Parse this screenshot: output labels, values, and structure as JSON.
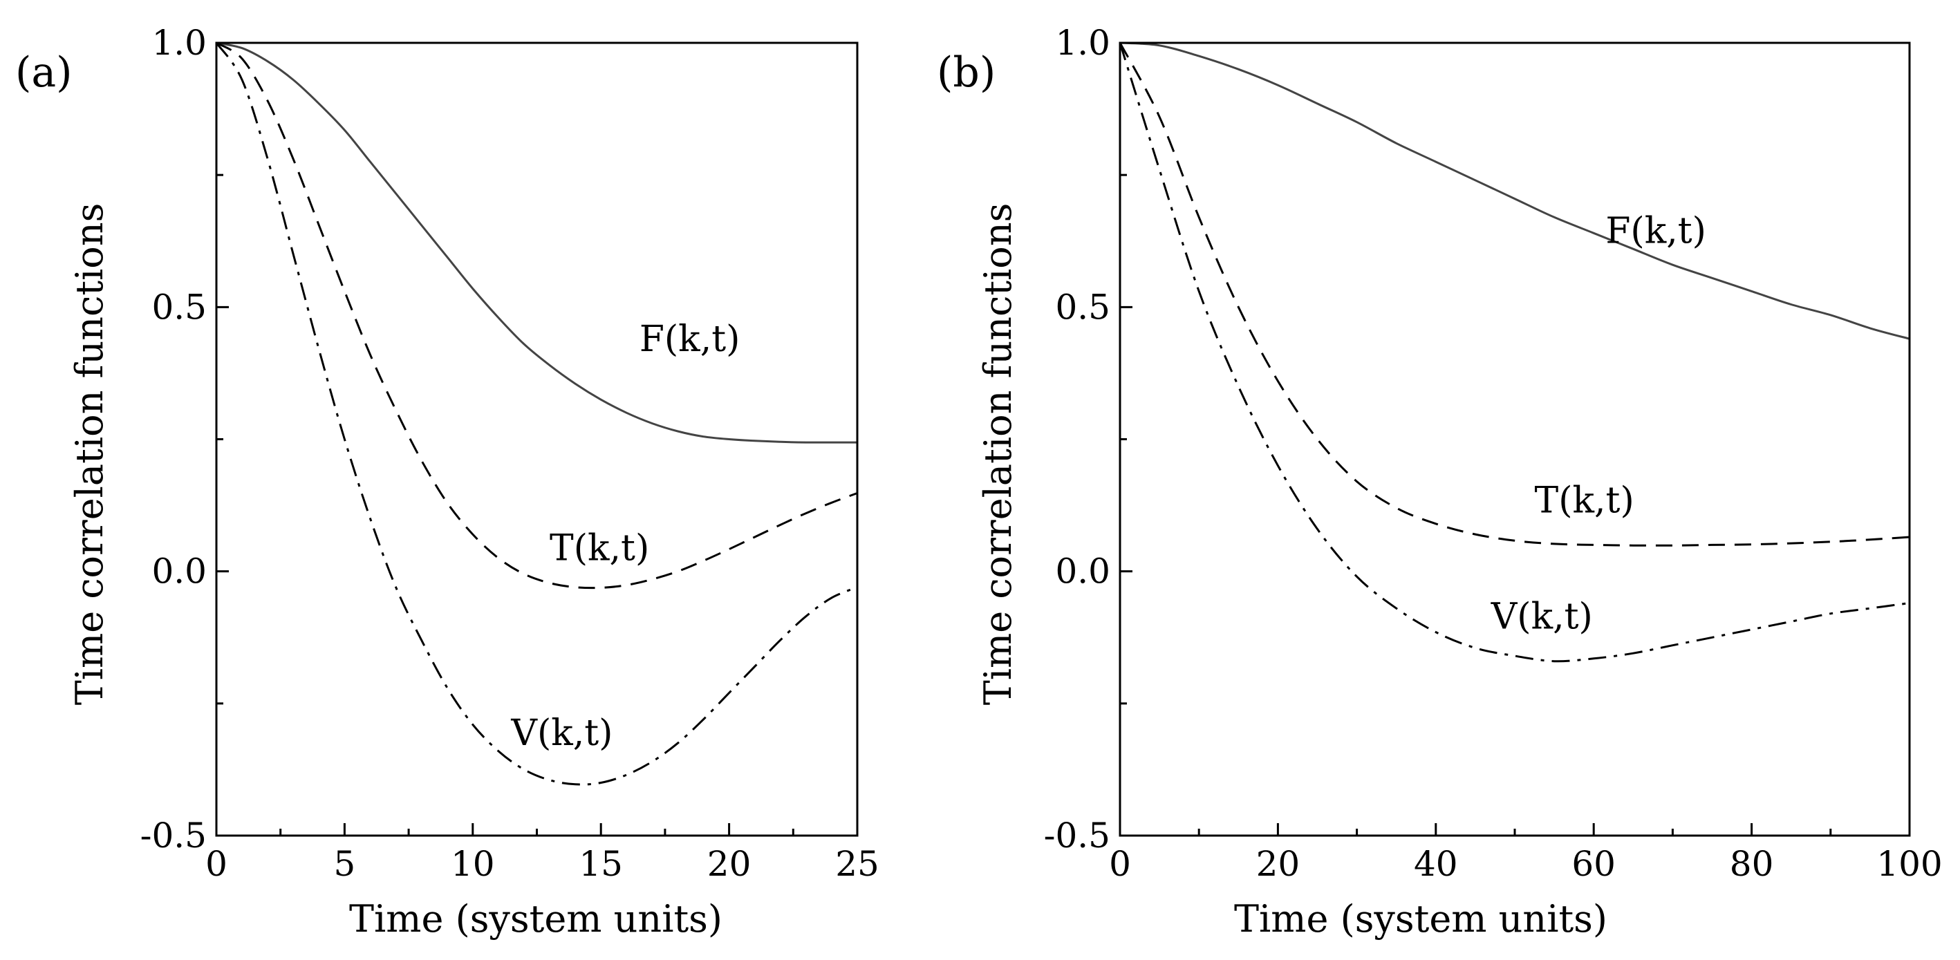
{
  "chart_data": [
    {
      "type": "line",
      "panel_label": "(a)",
      "xlabel": "Time (system units)",
      "ylabel": "Time correlation functions",
      "xlim": [
        0,
        25
      ],
      "ylim": [
        -0.5,
        1.0
      ],
      "xticks": [
        0,
        5,
        10,
        15,
        20,
        25
      ],
      "yticks": [
        -0.5,
        0.0,
        0.5,
        1.0
      ],
      "xtick_labels": [
        "0",
        "5",
        "10",
        "15",
        "20",
        "25"
      ],
      "ytick_labels": [
        "-0.5",
        "0.0",
        "0.5",
        "1.0"
      ],
      "series": [
        {
          "name": "F(k,t)",
          "style": "solid",
          "label_at": [
            16.5,
            0.44
          ],
          "x": [
            0,
            1,
            2,
            3,
            4,
            5,
            6,
            7,
            8,
            9,
            10,
            11,
            12,
            13,
            14,
            15,
            16,
            17,
            18,
            19,
            20,
            21,
            22,
            23,
            24,
            25
          ],
          "y": [
            1.0,
            0.99,
            0.965,
            0.93,
            0.885,
            0.835,
            0.775,
            0.715,
            0.655,
            0.595,
            0.535,
            0.48,
            0.43,
            0.39,
            0.355,
            0.325,
            0.3,
            0.28,
            0.265,
            0.255,
            0.25,
            0.247,
            0.245,
            0.244,
            0.244,
            0.244
          ]
        },
        {
          "name": "T(k,t)",
          "style": "dashed",
          "label_at": [
            13.0,
            0.045
          ],
          "x": [
            0,
            1,
            2,
            3,
            4,
            5,
            6,
            7,
            8,
            9,
            10,
            11,
            12,
            13,
            14,
            15,
            16,
            17,
            18,
            19,
            20,
            21,
            22,
            23,
            24,
            25
          ],
          "y": [
            1.0,
            0.97,
            0.89,
            0.78,
            0.655,
            0.53,
            0.41,
            0.305,
            0.21,
            0.13,
            0.07,
            0.025,
            -0.005,
            -0.022,
            -0.03,
            -0.031,
            -0.026,
            -0.015,
            0.0,
            0.02,
            0.042,
            0.065,
            0.088,
            0.11,
            0.13,
            0.148
          ]
        },
        {
          "name": "V(k,t)",
          "style": "dashdot",
          "label_at": [
            11.5,
            -0.305
          ],
          "x": [
            0,
            1,
            2,
            3,
            4,
            5,
            6,
            7,
            8,
            9,
            10,
            11,
            12,
            13,
            14,
            15,
            16,
            17,
            18,
            19,
            20,
            21,
            22,
            23,
            24,
            25
          ],
          "y": [
            1.0,
            0.93,
            0.78,
            0.6,
            0.42,
            0.25,
            0.1,
            -0.03,
            -0.13,
            -0.22,
            -0.29,
            -0.34,
            -0.375,
            -0.395,
            -0.403,
            -0.4,
            -0.385,
            -0.36,
            -0.325,
            -0.28,
            -0.23,
            -0.18,
            -0.13,
            -0.085,
            -0.05,
            -0.03
          ]
        }
      ]
    },
    {
      "type": "line",
      "panel_label": "(b)",
      "xlabel": "Time (system units)",
      "ylabel": "Time correlation functions",
      "xlim": [
        0,
        100
      ],
      "ylim": [
        -0.5,
        1.0
      ],
      "xticks": [
        0,
        20,
        40,
        60,
        80,
        100
      ],
      "yticks": [
        -0.5,
        0.0,
        0.5,
        1.0
      ],
      "xtick_labels": [
        "0",
        "20",
        "40",
        "60",
        "80",
        "100"
      ],
      "ytick_labels": [
        "-0.5",
        "0.0",
        "0.5",
        "1.0"
      ],
      "series": [
        {
          "name": "F(k,t)",
          "style": "solid",
          "label_at": [
            61.5,
            0.645
          ],
          "x": [
            0,
            5,
            10,
            15,
            20,
            25,
            30,
            35,
            40,
            45,
            50,
            55,
            60,
            65,
            70,
            75,
            80,
            85,
            90,
            95,
            100
          ],
          "y": [
            1.0,
            0.995,
            0.975,
            0.95,
            0.92,
            0.885,
            0.85,
            0.81,
            0.775,
            0.74,
            0.705,
            0.67,
            0.64,
            0.61,
            0.58,
            0.555,
            0.53,
            0.505,
            0.485,
            0.46,
            0.44
          ]
        },
        {
          "name": "T(k,t)",
          "style": "dashed",
          "label_at": [
            52.5,
            0.135
          ],
          "x": [
            0,
            5,
            10,
            15,
            20,
            25,
            30,
            35,
            40,
            45,
            50,
            55,
            60,
            65,
            70,
            75,
            80,
            85,
            90,
            95,
            100
          ],
          "y": [
            1.0,
            0.86,
            0.67,
            0.5,
            0.36,
            0.25,
            0.17,
            0.12,
            0.09,
            0.07,
            0.058,
            0.052,
            0.05,
            0.049,
            0.049,
            0.05,
            0.051,
            0.053,
            0.056,
            0.06,
            0.065
          ]
        },
        {
          "name": "V(k,t)",
          "style": "dashdot",
          "label_at": [
            47.0,
            -0.085
          ],
          "x": [
            0,
            5,
            10,
            15,
            20,
            25,
            30,
            35,
            40,
            45,
            50,
            55,
            60,
            65,
            70,
            75,
            80,
            85,
            90,
            95,
            100
          ],
          "y": [
            1.0,
            0.76,
            0.53,
            0.35,
            0.2,
            0.08,
            -0.01,
            -0.07,
            -0.115,
            -0.145,
            -0.16,
            -0.17,
            -0.165,
            -0.155,
            -0.14,
            -0.125,
            -0.11,
            -0.095,
            -0.08,
            -0.07,
            -0.06
          ]
        }
      ]
    }
  ]
}
